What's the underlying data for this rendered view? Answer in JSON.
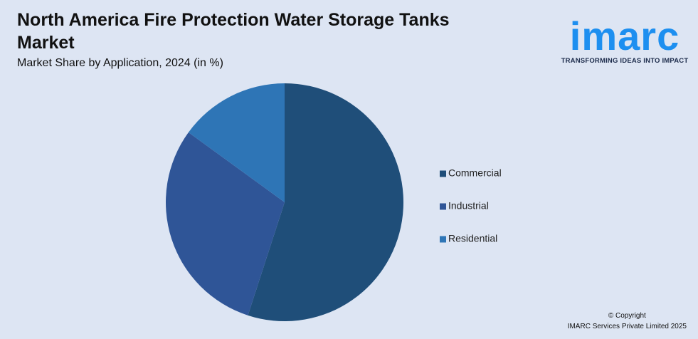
{
  "chart_data": {
    "type": "pie",
    "title": "North America Fire Protection Water Storage Tanks Market",
    "subtitle": "Market Share by Application, 2024 (in %)",
    "categories": [
      "Commercial",
      "Industrial",
      "Residential"
    ],
    "values": [
      55,
      30,
      15
    ],
    "colors": [
      "#1f4e79",
      "#2f5597",
      "#2e75b6"
    ],
    "legend": "right"
  },
  "logo": {
    "name": "imarc",
    "tagline": "TRANSFORMING IDEAS INTO IMPACT"
  },
  "footer": {
    "copyright": "© Copyright",
    "company": "IMARC Services Private Limited 2025"
  }
}
